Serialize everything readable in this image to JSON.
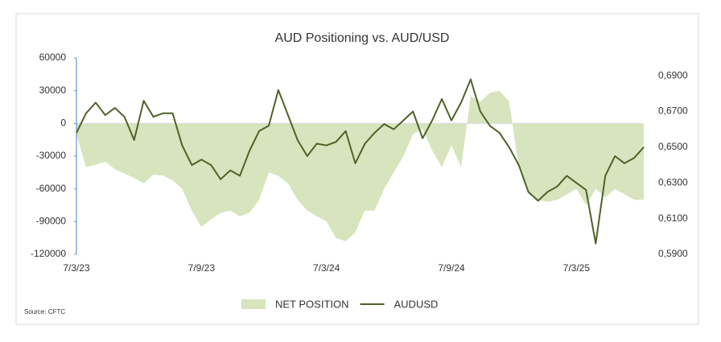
{
  "chart_data": {
    "type": "area_line",
    "title": "AUD Positioning vs. AUD/USD",
    "source": "Source: CFTC",
    "categories": [
      "7/3/23",
      null,
      null,
      null,
      null,
      null,
      null,
      null,
      null,
      null,
      null,
      null,
      null,
      "7/9/23",
      null,
      null,
      null,
      null,
      null,
      null,
      null,
      null,
      null,
      null,
      null,
      null,
      "7/3/24",
      null,
      null,
      null,
      null,
      null,
      null,
      null,
      null,
      null,
      null,
      null,
      null,
      "7/9/24",
      null,
      null,
      null,
      null,
      null,
      null,
      null,
      null,
      null,
      null,
      null,
      null,
      "7/3/25",
      null,
      null,
      null,
      null,
      null,
      null,
      null
    ],
    "series": [
      {
        "name": "NET POSITION",
        "color": "#d7e4bd",
        "axis": "y",
        "values": [
          -10000,
          -40000,
          -38000,
          -35000,
          -42000,
          -46000,
          -50000,
          -55000,
          -47000,
          -48000,
          -52000,
          -60000,
          -80000,
          -95000,
          -88000,
          -82000,
          -80000,
          -85000,
          -82000,
          -70000,
          -45000,
          -48000,
          -55000,
          -70000,
          -80000,
          -85000,
          -90000,
          -105000,
          -108000,
          -100000,
          -80000,
          -80000,
          -60000,
          -45000,
          -30000,
          -10000,
          -5000,
          -25000,
          -40000,
          -20000,
          -40000,
          25000,
          20000,
          28000,
          30000,
          20000,
          -40000,
          -65000,
          -70000,
          -72000,
          -70000,
          -65000,
          -60000,
          -75000,
          -60000,
          -68000,
          -60000,
          -65000,
          -70000,
          -70000
        ]
      },
      {
        "name": "AUDUSD",
        "color": "#4f6228",
        "axis": "y2",
        "values": [
          0.658,
          0.669,
          0.675,
          0.668,
          0.672,
          0.667,
          0.654,
          0.676,
          0.667,
          0.669,
          0.669,
          0.651,
          0.64,
          0.643,
          0.64,
          0.632,
          0.637,
          0.634,
          0.648,
          0.659,
          0.662,
          0.682,
          0.668,
          0.654,
          0.645,
          0.652,
          0.651,
          0.653,
          0.659,
          0.641,
          0.652,
          0.658,
          0.663,
          0.66,
          0.665,
          0.67,
          0.655,
          0.665,
          0.677,
          0.665,
          0.675,
          0.688,
          0.67,
          0.662,
          0.658,
          0.65,
          0.64,
          0.625,
          0.62,
          0.625,
          0.628,
          0.634,
          0.63,
          0.626,
          0.596,
          0.634,
          0.645,
          0.641,
          0.644,
          0.65
        ]
      }
    ],
    "ylim": [
      -120000,
      60000
    ],
    "yticks": [
      -120000,
      -90000,
      -60000,
      -30000,
      0,
      30000,
      60000
    ],
    "y2lim": [
      0.59,
      0.7
    ],
    "y2ticks": [
      {
        "value": 0.59,
        "label": "0,5900"
      },
      {
        "value": 0.61,
        "label": "0,6100"
      },
      {
        "value": 0.63,
        "label": "0,6300"
      },
      {
        "value": 0.65,
        "label": "0,6500"
      },
      {
        "value": 0.67,
        "label": "0,6700"
      },
      {
        "value": 0.69,
        "label": "0,6900"
      }
    ],
    "grid": false,
    "legend": "bottom"
  }
}
